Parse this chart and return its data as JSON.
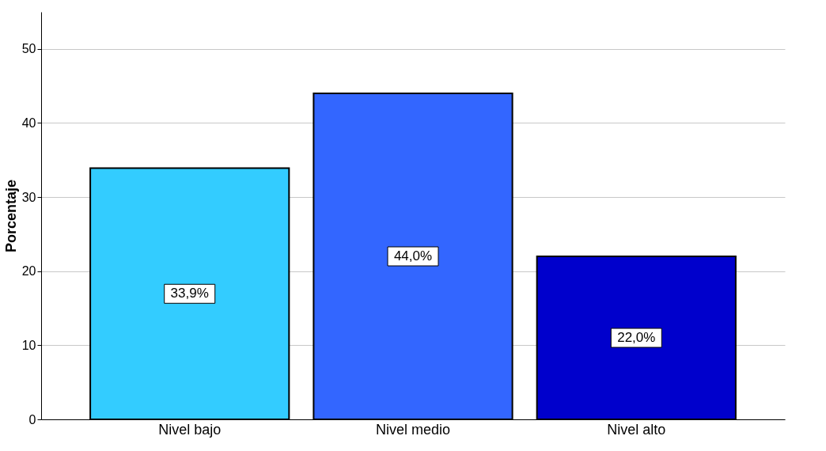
{
  "chart_data": {
    "type": "bar",
    "ylabel": "Porcentaje",
    "categories": [
      "Nivel bajo",
      "Nivel medio",
      "Nivel alto"
    ],
    "values": [
      33.9,
      44.0,
      22.0
    ],
    "colors": [
      "#33ccff",
      "#3366ff",
      "#0000cc"
    ],
    "value_labels": [
      "33,9%",
      "44,0%",
      "22,0%"
    ],
    "ylim": [
      0,
      55
    ],
    "yticks": [
      0,
      10,
      20,
      30,
      40,
      50
    ],
    "grid": "y"
  }
}
